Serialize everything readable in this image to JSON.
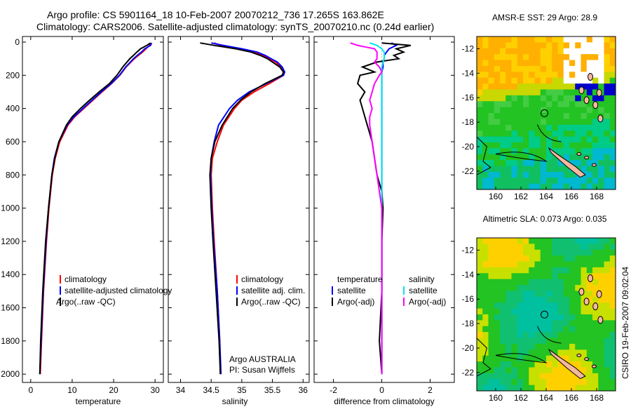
{
  "header": {
    "line1": "Argo profile: CS 5901164_18 10-Feb-2007 20070212_736 17.265S 163.862E",
    "line2": "Climatology: CARS2006. Satellite-adjusted climatology: synTS_20070210.nc (0.24d earlier)"
  },
  "colors": {
    "climatology": "#ff0000",
    "satellite": "#0000ff",
    "argo": "#000000",
    "argo_sal": "#ff00ff",
    "sat_sal": "#00e5ee",
    "land": "#f4b8a0"
  },
  "credit": {
    "org": "Argo AUSTRALIA",
    "pi": "PI: Susan Wijffels",
    "stamp": "CSIRO 19-Feb-2007 09:02:04"
  },
  "chart_data": [
    {
      "type": "line",
      "name": "temperature",
      "xlabel": "temperature",
      "ylabel": "",
      "xlim": [
        -2,
        32
      ],
      "ylim": [
        0,
        2050
      ],
      "xticks": [
        "0",
        "10",
        "20",
        "30"
      ],
      "xtick_values": [
        0,
        10,
        20,
        30
      ],
      "yticks": [
        "0",
        "200",
        "400",
        "600",
        "800",
        "1000",
        "1200",
        "1400",
        "1600",
        "1800",
        "2000"
      ],
      "legend": [
        "climatology",
        "satellite-adjusted climatology",
        "Argo(..raw -QC)"
      ],
      "depth": [
        5,
        20,
        40,
        60,
        80,
        100,
        150,
        200,
        250,
        300,
        350,
        400,
        450,
        500,
        600,
        700,
        800,
        1000,
        1200,
        1500,
        1800,
        2000
      ],
      "series": [
        {
          "name": "climatology",
          "values": [
            28.8,
            28.6,
            27.8,
            27.0,
            26.0,
            25.0,
            23.0,
            21.5,
            19.5,
            17.2,
            15.0,
            12.8,
            10.6,
            9.0,
            7.0,
            5.9,
            5.2,
            4.4,
            3.8,
            3.1,
            2.6,
            2.3
          ]
        },
        {
          "name": "satellite-adjusted climatology",
          "values": [
            29.2,
            28.9,
            27.5,
            26.7,
            25.7,
            24.8,
            22.9,
            21.4,
            19.4,
            17.0,
            14.8,
            12.6,
            10.4,
            8.8,
            6.8,
            5.7,
            5.1,
            4.3,
            3.7,
            3.0,
            2.5,
            2.2
          ]
        },
        {
          "name": "Argo",
          "values": [
            28.9,
            28.0,
            26.5,
            25.6,
            24.8,
            23.9,
            22.2,
            20.8,
            19.0,
            16.5,
            14.2,
            12.0,
            10.0,
            8.6,
            6.8,
            5.8,
            5.1,
            4.3,
            3.6,
            2.9,
            2.4,
            2.2
          ]
        }
      ]
    },
    {
      "type": "line",
      "name": "salinity",
      "xlabel": "salinity",
      "ylabel": "",
      "xlim": [
        33.8,
        36.1
      ],
      "ylim": [
        0,
        2050
      ],
      "xticks": [
        "34",
        "34.5",
        "35",
        "35.5",
        "36"
      ],
      "xtick_values": [
        34,
        34.5,
        35,
        35.5,
        36
      ],
      "legend": [
        "climatology",
        "satellite adj. clim.",
        "Argo(..raw -QC)"
      ],
      "depth": [
        5,
        20,
        40,
        60,
        80,
        100,
        120,
        150,
        180,
        200,
        250,
        300,
        350,
        400,
        500,
        600,
        700,
        800,
        1000,
        1200,
        1500,
        1800,
        2000
      ],
      "series": [
        {
          "name": "climatology",
          "values": [
            34.55,
            34.65,
            34.95,
            35.2,
            35.35,
            35.45,
            35.55,
            35.65,
            35.7,
            35.68,
            35.45,
            35.2,
            35.0,
            34.88,
            34.7,
            34.6,
            34.52,
            34.5,
            34.52,
            34.55,
            34.6,
            34.64,
            34.65
          ]
        },
        {
          "name": "satellite adj. clim.",
          "values": [
            34.5,
            34.7,
            35.0,
            35.25,
            35.38,
            35.48,
            35.58,
            35.66,
            35.7,
            35.68,
            35.4,
            35.12,
            34.93,
            34.8,
            34.62,
            34.55,
            34.5,
            34.49,
            34.51,
            34.54,
            34.6,
            34.64,
            34.66
          ]
        },
        {
          "name": "Argo",
          "values": [
            34.32,
            34.55,
            34.9,
            35.15,
            35.3,
            35.42,
            35.5,
            35.62,
            35.68,
            35.66,
            35.38,
            35.15,
            34.98,
            34.85,
            34.68,
            34.56,
            34.5,
            34.48,
            34.5,
            34.53,
            34.58,
            34.63,
            34.65
          ]
        }
      ]
    },
    {
      "type": "line",
      "name": "difference",
      "xlabel": "difference from climatology",
      "ylabel": "",
      "xlim": [
        -2.8,
        3.0
      ],
      "ylim": [
        0,
        2050
      ],
      "xticks": [
        "-2",
        "0",
        "2"
      ],
      "xtick_values": [
        -2,
        0,
        2
      ],
      "legend": {
        "temperature_header": "temperature",
        "salinity_header": "salinity",
        "temperature": [
          "satellite",
          "Argo(-adj)"
        ],
        "salinity": [
          "satellite",
          "Argo(-adj)"
        ]
      },
      "depth": [
        5,
        20,
        40,
        60,
        80,
        100,
        120,
        150,
        180,
        200,
        250,
        300,
        350,
        400,
        450,
        500,
        600,
        700,
        800,
        900,
        1000,
        1200,
        1500,
        1800,
        2000
      ],
      "series": [
        {
          "name": "temp satellite",
          "values": [
            0.4,
            0.6,
            0.3,
            0.2,
            0.1,
            0.1,
            0.05,
            0.05,
            0.0,
            0.0,
            0.0,
            0.0,
            0.0,
            0.0,
            0.0,
            0.0,
            0.0,
            0.0,
            0.0,
            0.0,
            0.0,
            0.0,
            0.0,
            0.0,
            0.0
          ]
        },
        {
          "name": "temp Argo(-adj)",
          "values": [
            0.0,
            1.2,
            0.6,
            0.9,
            0.5,
            0.7,
            -0.2,
            -0.8,
            -0.3,
            -0.9,
            -1.0,
            -0.7,
            -0.9,
            -0.8,
            -0.7,
            -0.6,
            -0.4,
            -0.3,
            -0.2,
            0.0,
            0.05,
            0.0,
            0.0,
            -0.1,
            0.0
          ]
        },
        {
          "name": "sal satellite",
          "values": [
            -0.5,
            -0.2,
            0.0,
            0.1,
            0.1,
            0.1,
            0.05,
            0.0,
            0.0,
            0.0,
            0.0,
            0.0,
            0.0,
            0.0,
            0.0,
            0.0,
            0.0,
            0.0,
            0.0,
            0.0,
            0.0,
            0.0,
            0.0,
            0.0,
            0.0
          ]
        },
        {
          "name": "sal Argo(-adj)",
          "values": [
            -1.3,
            -1.0,
            -0.3,
            -0.2,
            -0.2,
            -0.2,
            -0.3,
            -0.1,
            0.0,
            -0.1,
            -0.3,
            -0.4,
            -0.5,
            -0.4,
            -0.5,
            -0.5,
            -0.4,
            -0.3,
            -0.2,
            -0.1,
            0.0,
            0.0,
            0.0,
            0.0,
            0.0
          ]
        }
      ]
    },
    {
      "type": "heatmap",
      "name": "sst_map",
      "title": "AMSR-E SST: 29 Argo: 28.9",
      "xticks": [
        "160",
        "162",
        "164",
        "166",
        "168"
      ],
      "yticks": [
        "-12",
        "-14",
        "-16",
        "-18",
        "-20",
        "-22"
      ],
      "lon_range": [
        158.5,
        169.5
      ],
      "lat_range": [
        -23.5,
        -11.0
      ],
      "argo_lon": 163.862,
      "argo_lat": -17.265
    },
    {
      "type": "heatmap",
      "name": "sla_map",
      "title": "Altimetric SLA: 0.073 Argo: 0.035",
      "xticks": [
        "160",
        "162",
        "164",
        "166",
        "168"
      ],
      "yticks": [
        "-12",
        "-14",
        "-16",
        "-18",
        "-20",
        "-22"
      ],
      "lon_range": [
        158.5,
        169.5
      ],
      "lat_range": [
        -23.5,
        -11.0
      ],
      "argo_lon": 163.862,
      "argo_lat": -17.265
    }
  ]
}
